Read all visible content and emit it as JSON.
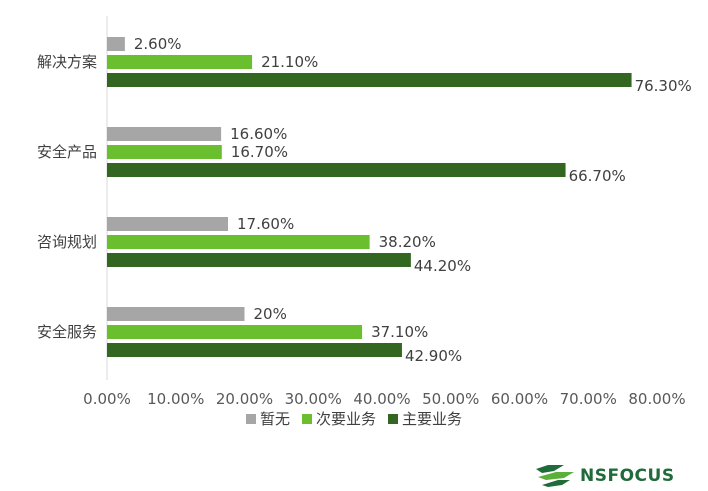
{
  "chart_data": {
    "type": "bar",
    "orientation": "horizontal",
    "categories": [
      "解决方案",
      "安全产品",
      "咨询规划",
      "安全服务"
    ],
    "series": [
      {
        "name": "暂无",
        "color": "#a6a6a6",
        "values": [
          2.6,
          16.6,
          17.6,
          20
        ],
        "labels": [
          "2.60%",
          "16.60%",
          "17.60%",
          "20%"
        ]
      },
      {
        "name": "次要业务",
        "color": "#6abf2f",
        "values": [
          21.1,
          16.7,
          38.2,
          37.1
        ],
        "labels": [
          "21.10%",
          "16.70%",
          "38.20%",
          "37.10%"
        ]
      },
      {
        "name": "主要业务",
        "color": "#336620",
        "values": [
          76.3,
          66.7,
          44.2,
          42.9
        ],
        "labels": [
          "76.30%",
          "66.70%",
          "44.20%",
          "42.90%"
        ]
      }
    ],
    "xlim": [
      0,
      80
    ],
    "x_ticks": [
      "0.00%",
      "10.00%",
      "20.00%",
      "30.00%",
      "40.00%",
      "50.00%",
      "60.00%",
      "70.00%",
      "80.00%"
    ],
    "legend_position": "bottom",
    "grid": false
  },
  "logo": {
    "text": "NSFOCUS"
  }
}
